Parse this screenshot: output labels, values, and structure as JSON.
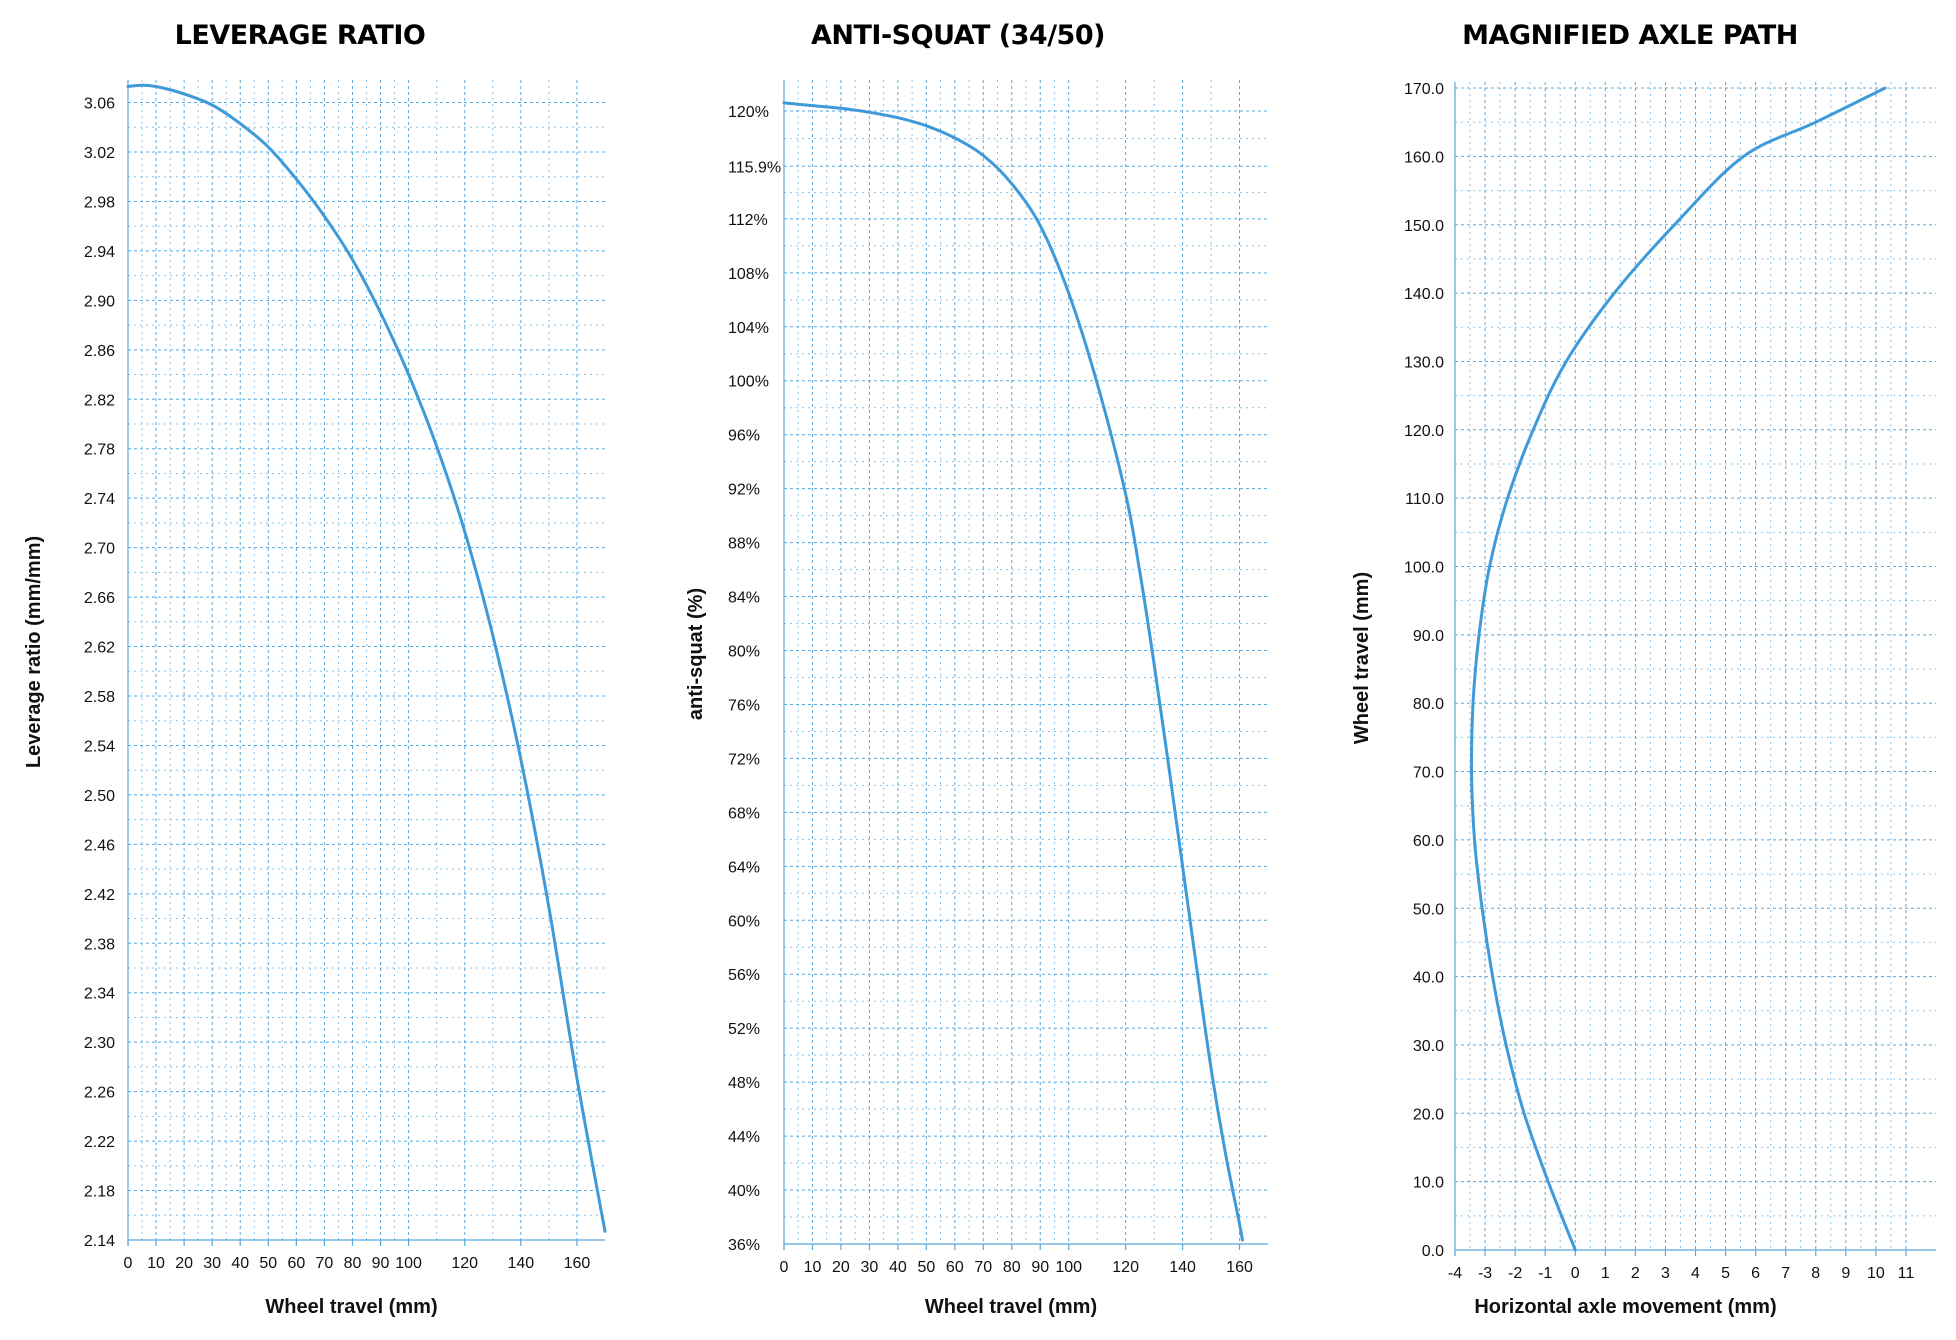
{
  "colors": {
    "curve": "#3e9ad8",
    "grid": "#5aa8dc"
  },
  "chart_data": [
    {
      "type": "line",
      "title": "LEVERAGE RATIO",
      "xlabel": "Wheel travel (mm)",
      "ylabel": "Leverage ratio (mm/mm)",
      "xlim": [
        0,
        170
      ],
      "ylim": [
        2.14,
        3.075
      ],
      "xticks": [
        0,
        10,
        20,
        30,
        40,
        50,
        60,
        70,
        80,
        90,
        100,
        120,
        140,
        160
      ],
      "xtick_labels": [
        "0",
        "10",
        "20",
        "30",
        "40",
        "50",
        "60",
        "70",
        "80",
        "90",
        "100",
        "120",
        "140",
        "160"
      ],
      "yticks": [
        2.14,
        2.18,
        2.22,
        2.26,
        2.3,
        2.34,
        2.38,
        2.42,
        2.46,
        2.5,
        2.54,
        2.58,
        2.62,
        2.66,
        2.7,
        2.74,
        2.78,
        2.82,
        2.86,
        2.9,
        2.94,
        2.98,
        3.02,
        3.06
      ],
      "ytick_labels": [
        "2.14",
        "2.18",
        "2.22",
        "2.26",
        "2.30",
        "2.34",
        "2.38",
        "2.42",
        "2.46",
        "2.50",
        "2.54",
        "2.58",
        "2.62",
        "2.66",
        "2.70",
        "2.74",
        "2.78",
        "2.82",
        "2.86",
        "2.90",
        "2.94",
        "2.98",
        "3.02",
        "3.06"
      ],
      "series": [
        {
          "x": [
            0,
            5,
            10,
            20,
            30,
            40,
            50,
            60,
            70,
            80,
            90,
            100,
            110,
            120,
            130,
            140,
            150,
            160,
            170
          ],
          "y": [
            3.073,
            3.074,
            3.073,
            3.067,
            3.058,
            3.043,
            3.024,
            2.998,
            2.968,
            2.933,
            2.89,
            2.84,
            2.782,
            2.713,
            2.629,
            2.529,
            2.409,
            2.271,
            2.147
          ]
        }
      ]
    },
    {
      "type": "line",
      "title": "ANTI-SQUAT (34/50)",
      "xlabel": "Wheel travel (mm)",
      "ylabel": "anti-squat (%)",
      "xlim": [
        0,
        170
      ],
      "ylim": [
        36,
        122
      ],
      "xticks": [
        0,
        10,
        20,
        30,
        40,
        50,
        60,
        70,
        80,
        90,
        100,
        120,
        140,
        160
      ],
      "xtick_labels": [
        "0",
        "10",
        "20",
        "30",
        "40",
        "50",
        "60",
        "70",
        "80",
        "90",
        "100",
        "120",
        "140",
        "160"
      ],
      "yticks": [
        36,
        40,
        44,
        48,
        52,
        56,
        60,
        64,
        68,
        72,
        76,
        80,
        84,
        88,
        92,
        96,
        100,
        104,
        108,
        112,
        115.9,
        120
      ],
      "ytick_labels": [
        "36%",
        "40%",
        "44%",
        "48%",
        "52%",
        "56%",
        "60%",
        "64%",
        "68%",
        "72%",
        "76%",
        "80%",
        "84%",
        "88%",
        "92%",
        "96%",
        "100%",
        "104%",
        "108%",
        "112%",
        "115.9%",
        "120%"
      ],
      "series": [
        {
          "x": [
            0,
            10,
            20,
            30,
            40,
            50,
            60,
            70,
            80,
            90,
            100,
            110,
            120,
            125,
            130,
            135,
            140,
            145,
            150,
            155,
            160,
            161
          ],
          "y": [
            120.6,
            120.4,
            120.2,
            119.9,
            119.5,
            118.9,
            118.0,
            116.7,
            114.6,
            111.5,
            106.5,
            99.8,
            91.6,
            85.8,
            79.0,
            71.6,
            64.0,
            56.4,
            49.0,
            42.8,
            37.5,
            36.3
          ]
        }
      ]
    },
    {
      "type": "line",
      "title": "MAGNIFIED AXLE PATH",
      "xlabel": "Horizontal axle movement (mm)",
      "ylabel": "Wheel travel (mm)",
      "xlim": [
        -4,
        12
      ],
      "ylim": [
        0,
        170.3
      ],
      "xticks": [
        -4,
        -3,
        -2,
        -1,
        0,
        1,
        2,
        3,
        4,
        5,
        6,
        7,
        8,
        9,
        10,
        11
      ],
      "xtick_labels": [
        "-4",
        "-3",
        "-2",
        "-1",
        "0",
        "1",
        "2",
        "3",
        "4",
        "5",
        "6",
        "7",
        "8",
        "9",
        "10",
        "11"
      ],
      "yticks": [
        0,
        10,
        20,
        30,
        40,
        50,
        60,
        70,
        80,
        90,
        100,
        110,
        120,
        130,
        140,
        150,
        160,
        170
      ],
      "ytick_labels": [
        "0.0",
        "10.0",
        "20.0",
        "30.0",
        "40.0",
        "50.0",
        "60.0",
        "70.0",
        "80.0",
        "90.0",
        "100.0",
        "110.0",
        "120.0",
        "130.0",
        "140.0",
        "150.0",
        "160.0",
        "170.0"
      ],
      "series": [
        {
          "x": [
            0,
            -0.9,
            -1.7,
            -2.3,
            -2.75,
            -3.1,
            -3.35,
            -3.45,
            -3.4,
            -3.2,
            -2.85,
            -2.25,
            -1.4,
            -0.3,
            1.3,
            3.3,
            5.6,
            8.0,
            10.3
          ],
          "y": [
            0,
            10,
            20,
            30,
            40,
            50,
            60,
            70,
            80,
            90,
            100,
            110,
            120,
            130,
            140,
            150,
            160,
            165,
            170
          ]
        }
      ]
    }
  ]
}
